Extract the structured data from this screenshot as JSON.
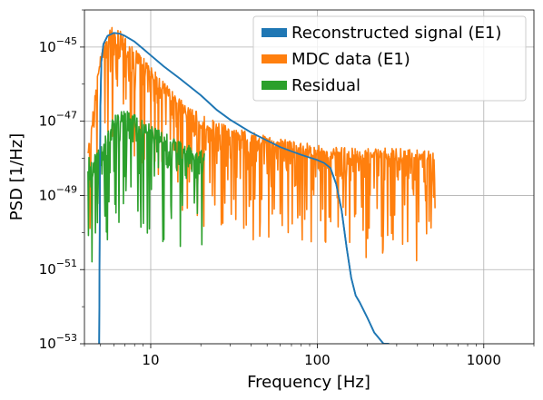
{
  "chart_data": {
    "type": "line",
    "xlabel": "Frequency [Hz]",
    "ylabel": "PSD [1/Hz]",
    "xscale": "log",
    "yscale": "log",
    "xlim": [
      4,
      2000
    ],
    "ylim": [
      1e-53,
      1e-44
    ],
    "grid": true,
    "legend_position": "top-right",
    "x_ticks": [
      {
        "value": 10,
        "label": "10"
      },
      {
        "value": 100,
        "label": "100"
      },
      {
        "value": 1000,
        "label": "1000"
      }
    ],
    "y_ticks": [
      {
        "value": 1e-45,
        "base": "10",
        "exp": "−45"
      },
      {
        "value": 1e-47,
        "base": "10",
        "exp": "−47"
      },
      {
        "value": 1e-49,
        "base": "10",
        "exp": "−49"
      },
      {
        "value": 1e-51,
        "base": "10",
        "exp": "−51"
      },
      {
        "value": 1e-53,
        "base": "10",
        "exp": "−53"
      }
    ],
    "series": [
      {
        "name": "Reconstructed signal (E1)",
        "color": "#1f77b4",
        "kind": "smooth",
        "x": [
          4.9,
          4.98,
          5.05,
          5.2,
          5.5,
          6.0,
          6.5,
          7.0,
          8.0,
          9.0,
          10,
          12,
          15,
          20,
          25,
          30,
          40,
          50,
          60,
          70,
          80,
          90,
          100,
          110,
          120,
          130,
          140,
          150,
          160,
          170,
          180,
          200,
          220,
          250,
          270
        ],
        "y": [
          1e-53,
          2e-47,
          4e-46,
          1.2e-45,
          2e-45,
          2.4e-45,
          2.3e-45,
          2e-45,
          1.4e-45,
          9e-46,
          6e-46,
          3e-46,
          1.4e-46,
          5e-47,
          2e-47,
          1.1e-47,
          5e-48,
          3e-48,
          2e-48,
          1.55e-48,
          1.25e-48,
          1.05e-48,
          9e-49,
          7.5e-49,
          5.5e-49,
          2e-49,
          4e-50,
          4e-51,
          6e-52,
          2e-52,
          1.3e-52,
          5e-53,
          2e-53,
          1e-53,
          1e-53
        ]
      },
      {
        "name": "MDC data (E1)",
        "color": "#ff7f0e",
        "kind": "noisy",
        "x_start": 4.2,
        "x_end": 512,
        "envelope": [
          [
            4.2,
            2e-48
          ],
          [
            4.6,
            5e-47
          ],
          [
            5.0,
            6e-46
          ],
          [
            5.5,
            2.5e-45
          ],
          [
            6.0,
            4e-45
          ],
          [
            6.5,
            3e-45
          ],
          [
            7.0,
            2e-45
          ],
          [
            8.0,
            1e-45
          ],
          [
            10,
            3e-46
          ],
          [
            12,
            1.2e-46
          ],
          [
            15,
            4e-47
          ],
          [
            20,
            1.5e-47
          ],
          [
            30,
            7e-48
          ],
          [
            50,
            4e-48
          ],
          [
            70,
            3e-48
          ],
          [
            100,
            2.5e-48
          ],
          [
            150,
            2e-48
          ],
          [
            200,
            2e-48
          ],
          [
            300,
            2e-48
          ],
          [
            512,
            1.5e-48
          ]
        ],
        "min_floor_exp": -51.9
      },
      {
        "name": "Residual",
        "color": "#2ca02c",
        "kind": "noisy",
        "x_start": 4.2,
        "x_end": 21,
        "envelope": [
          [
            4.2,
            1e-48
          ],
          [
            5.0,
            2e-48
          ],
          [
            6.0,
            1.5e-47
          ],
          [
            7.0,
            2e-47
          ],
          [
            8.0,
            1.5e-47
          ],
          [
            10,
            8e-48
          ],
          [
            12,
            5e-48
          ],
          [
            15,
            3e-48
          ],
          [
            18,
            2e-48
          ],
          [
            21,
            1.5e-48
          ]
        ],
        "min_floor_exp": -50.9
      }
    ]
  }
}
